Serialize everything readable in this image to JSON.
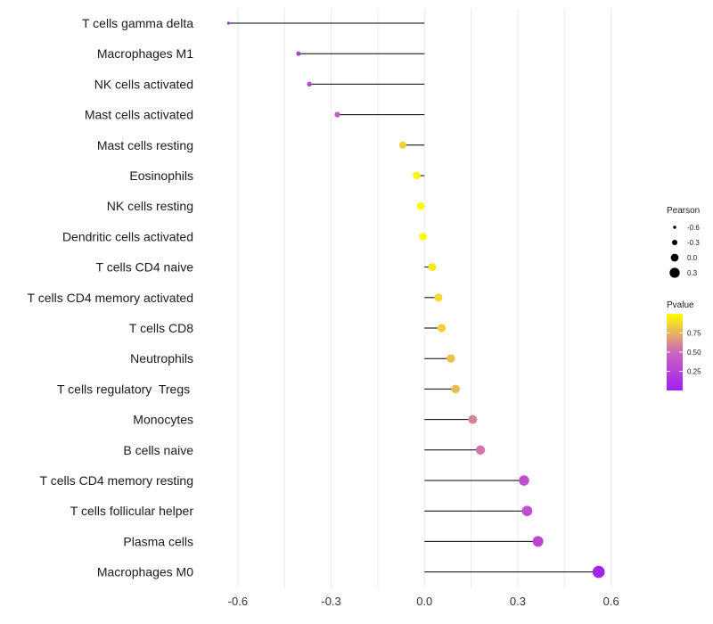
{
  "chart_data": {
    "type": "lollipop",
    "categories": [
      "T cells gamma delta",
      "Macrophages M1",
      "NK cells activated",
      "Mast cells activated",
      "Mast cells resting",
      "Eosinophils",
      "NK cells resting",
      "Dendritic cells activated",
      "T cells CD4 naive",
      "T cells CD4 memory activated",
      "T cells CD8",
      "Neutrophils",
      "T cells regulatory  Tregs ",
      "Monocytes",
      "B cells naive",
      "T cells CD4 memory resting",
      "T cells follicular helper",
      "Plasma cells",
      "Macrophages M0"
    ],
    "pearson": [
      -0.63,
      -0.405,
      -0.37,
      -0.28,
      -0.07,
      -0.025,
      -0.012,
      -0.005,
      0.025,
      0.045,
      0.055,
      0.085,
      0.1,
      0.155,
      0.18,
      0.32,
      0.33,
      0.365,
      0.56
    ],
    "pvalue": [
      0.05,
      0.22,
      0.28,
      0.4,
      0.85,
      0.97,
      0.98,
      0.99,
      0.92,
      0.88,
      0.85,
      0.8,
      0.78,
      0.6,
      0.55,
      0.35,
      0.33,
      0.27,
      0.03
    ],
    "xlim": [
      -0.72,
      0.75
    ],
    "x_ticks": [
      -0.6,
      -0.3,
      0.0,
      0.3,
      0.6
    ],
    "x_tick_labels": [
      "-0.6",
      "-0.3",
      "0.0",
      "0.3",
      "0.6"
    ],
    "size_legend": {
      "title": "Pearson",
      "values": [
        -0.6,
        -0.3,
        0.0,
        0.3
      ],
      "labels": [
        "-0.6",
        "-0.3",
        "0.0",
        "0.3"
      ]
    },
    "color_legend": {
      "title": "Pvalue",
      "range": [
        0.0,
        1.0
      ],
      "ticks": [
        0.75,
        0.5,
        0.25
      ],
      "tick_labels": [
        "0.75",
        "0.50",
        "0.25"
      ],
      "low_color": "#a020f0",
      "mid_color": "#cc66bb",
      "high_color": "#ffff00"
    },
    "grid": true,
    "legend_position": "right"
  }
}
